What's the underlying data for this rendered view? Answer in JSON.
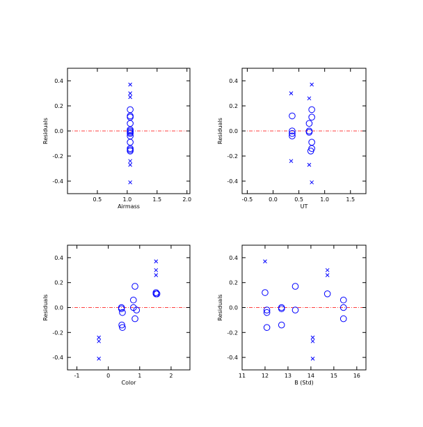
{
  "colors": {
    "points": "#0000ff",
    "zero_line": "#ff0000",
    "axes": "#000000"
  },
  "chart_data": [
    {
      "type": "scatter",
      "xlabel": "Airmass",
      "ylabel": "Residuals",
      "xlim": [
        0,
        2.05
      ],
      "ylim": [
        -0.5,
        0.5
      ],
      "xticks": [
        0.5,
        1.0,
        1.5,
        2.0
      ],
      "xtick_labels": [
        "0.5",
        "1.0",
        "1.5",
        "2.0"
      ],
      "yticks": [
        -0.4,
        -0.2,
        0.0,
        0.2,
        0.4
      ],
      "ytick_labels": [
        "-0.4",
        "-0.2",
        "0.0",
        "0.2",
        "0.4"
      ],
      "zero_line": 0.0,
      "series": [
        {
          "marker": "circle",
          "x": [
            1.05,
            1.05,
            1.05,
            1.05,
            1.05,
            1.05,
            1.05,
            1.05,
            1.05,
            1.05,
            1.05,
            1.05,
            1.05
          ],
          "y": [
            0.17,
            0.12,
            0.11,
            0.06,
            0.01,
            0.0,
            -0.01,
            -0.02,
            -0.04,
            -0.09,
            -0.14,
            -0.16,
            -0.15
          ]
        },
        {
          "marker": "cross",
          "x": [
            1.05,
            1.05,
            1.05,
            1.05,
            1.05,
            1.05
          ],
          "y": [
            0.37,
            0.3,
            0.27,
            -0.24,
            -0.27,
            -0.41
          ]
        }
      ]
    },
    {
      "type": "scatter",
      "xlabel": "UT",
      "ylabel": "Residuals",
      "xlim": [
        -0.6,
        1.8
      ],
      "ylim": [
        -0.5,
        0.5
      ],
      "xticks": [
        -0.5,
        0.0,
        0.5,
        1.0,
        1.5
      ],
      "xtick_labels": [
        "-0.5",
        "0.0",
        "0.5",
        "1.0",
        "1.5"
      ],
      "yticks": [
        -0.4,
        -0.2,
        0.0,
        0.2,
        0.4
      ],
      "ytick_labels": [
        "-0.4",
        "-0.2",
        "0.0",
        "0.2",
        "0.4"
      ],
      "zero_line": 0.0,
      "series": [
        {
          "marker": "circle",
          "x": [
            0.37,
            0.37,
            0.37,
            0.37,
            0.7,
            0.7,
            0.7,
            0.75,
            0.75,
            0.75,
            0.75,
            0.73
          ],
          "y": [
            0.12,
            0.0,
            -0.02,
            -0.04,
            0.06,
            0.0,
            -0.01,
            0.17,
            0.11,
            -0.09,
            -0.14,
            -0.16
          ]
        },
        {
          "marker": "cross",
          "x": [
            0.35,
            0.7,
            0.75,
            0.35,
            0.7,
            0.75
          ],
          "y": [
            0.3,
            0.26,
            0.37,
            -0.24,
            -0.27,
            -0.41
          ]
        }
      ]
    },
    {
      "type": "scatter",
      "xlabel": "Color",
      "ylabel": "Residuals",
      "xlim": [
        -1.3,
        2.6
      ],
      "ylim": [
        -0.5,
        0.5
      ],
      "xticks": [
        -1,
        0,
        1,
        2
      ],
      "xtick_labels": [
        "-1",
        "0",
        "1",
        "2"
      ],
      "yticks": [
        -0.4,
        -0.2,
        0.0,
        0.2,
        0.4
      ],
      "ytick_labels": [
        "-0.4",
        "-0.2",
        "0.0",
        "0.2",
        "0.4"
      ],
      "zero_line": 0.0,
      "series": [
        {
          "marker": "circle",
          "x": [
            0.42,
            0.42,
            0.45,
            0.43,
            0.45,
            0.8,
            0.8,
            0.85,
            0.85,
            0.9,
            1.52,
            1.52,
            1.55
          ],
          "y": [
            0.0,
            -0.01,
            -0.04,
            -0.14,
            -0.16,
            0.06,
            0.0,
            -0.09,
            0.17,
            -0.02,
            0.12,
            0.11,
            0.11
          ]
        },
        {
          "marker": "cross",
          "x": [
            -0.3,
            -0.3,
            -0.3,
            1.52,
            1.52,
            1.52
          ],
          "y": [
            -0.24,
            -0.27,
            -0.41,
            0.37,
            0.3,
            0.26
          ]
        }
      ]
    },
    {
      "type": "scatter",
      "xlabel": "B (Std)",
      "ylabel": "Residuals",
      "xlim": [
        11,
        16.4
      ],
      "ylim": [
        -0.5,
        0.5
      ],
      "xticks": [
        11,
        12,
        13,
        14,
        15,
        16
      ],
      "xtick_labels": [
        "11",
        "12",
        "13",
        "14",
        "15",
        "16"
      ],
      "yticks": [
        -0.4,
        -0.2,
        0.0,
        0.2,
        0.4
      ],
      "ytick_labels": [
        "-0.4",
        "-0.2",
        "0.0",
        "0.2",
        "0.4"
      ],
      "zero_line": 0.0,
      "series": [
        {
          "marker": "circle",
          "x": [
            12.0,
            12.08,
            12.08,
            12.08,
            12.72,
            12.72,
            12.72,
            13.32,
            13.32,
            14.72,
            15.42,
            15.42,
            15.42
          ],
          "y": [
            0.12,
            -0.02,
            -0.04,
            -0.16,
            0.0,
            -0.01,
            -0.14,
            0.17,
            -0.02,
            0.11,
            0.06,
            0.0,
            -0.09
          ]
        },
        {
          "marker": "cross",
          "x": [
            12.0,
            14.08,
            14.08,
            14.08,
            14.72,
            14.72
          ],
          "y": [
            0.37,
            -0.24,
            -0.27,
            -0.41,
            0.3,
            0.26
          ]
        }
      ]
    }
  ]
}
